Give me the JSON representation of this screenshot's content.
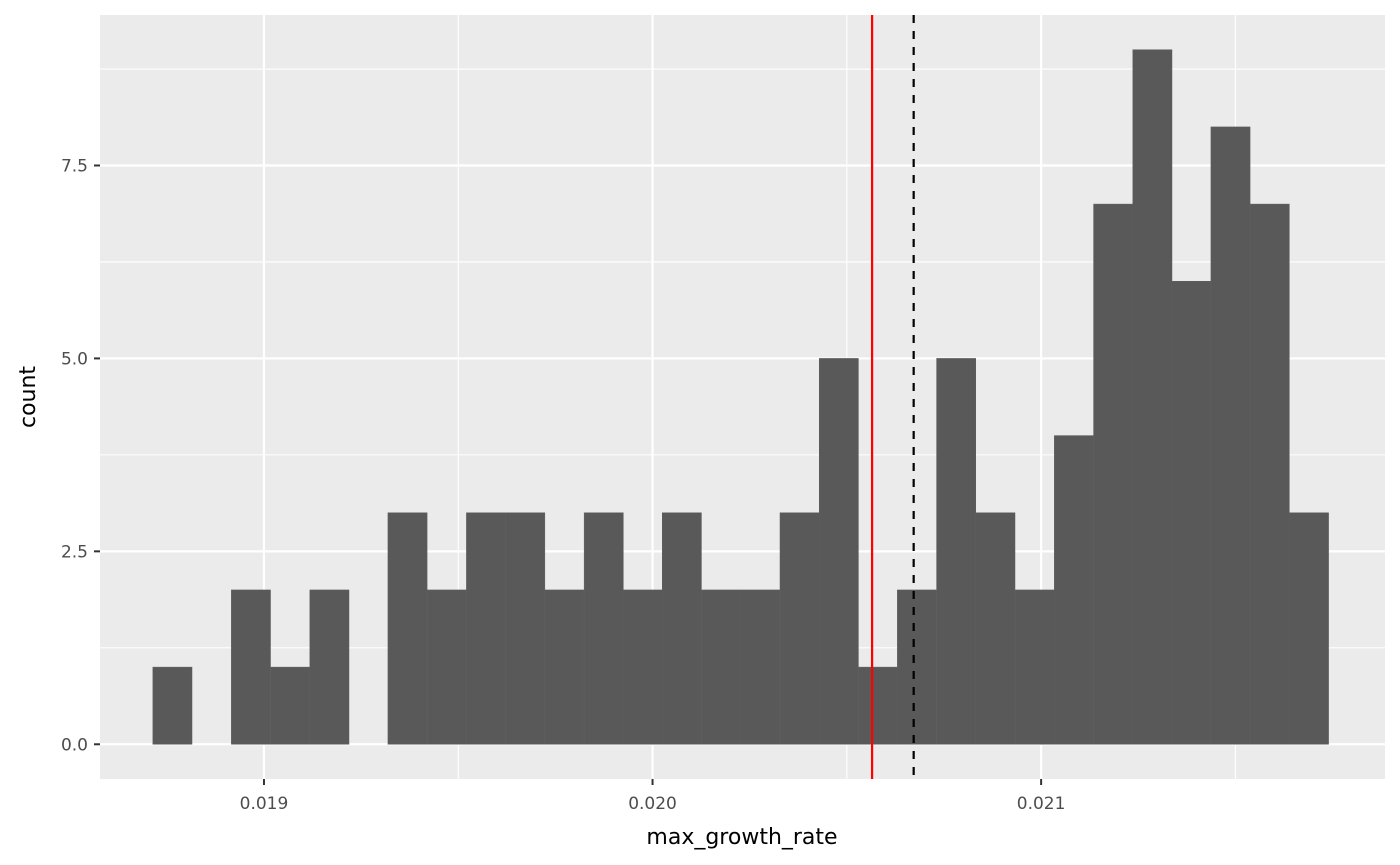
{
  "chart_data": {
    "type": "bar",
    "subtype": "histogram",
    "title": "",
    "xlabel": "max_growth_rate",
    "ylabel": "count",
    "xlim": [
      0.018578,
      0.021885
    ],
    "ylim": [
      -0.45,
      9.45
    ],
    "x_ticks": [
      {
        "value": 0.019,
        "label": "0.019"
      },
      {
        "value": 0.02,
        "label": "0.020"
      },
      {
        "value": 0.021,
        "label": "0.021"
      }
    ],
    "y_ticks": [
      {
        "value": 0,
        "label": "0.0"
      },
      {
        "value": 2.5,
        "label": "2.5"
      },
      {
        "value": 5,
        "label": "5.0"
      },
      {
        "value": 7.5,
        "label": "7.5"
      }
    ],
    "bin_width": 0.0001008,
    "bins": [
      {
        "start": 0.018714,
        "count": 1
      },
      {
        "start": 0.018815,
        "count": 0
      },
      {
        "start": 0.018916,
        "count": 2
      },
      {
        "start": 0.019017,
        "count": 1
      },
      {
        "start": 0.019118,
        "count": 2
      },
      {
        "start": 0.019218,
        "count": 0
      },
      {
        "start": 0.019319,
        "count": 3
      },
      {
        "start": 0.01942,
        "count": 2
      },
      {
        "start": 0.019521,
        "count": 3
      },
      {
        "start": 0.019622,
        "count": 3
      },
      {
        "start": 0.019723,
        "count": 2
      },
      {
        "start": 0.019824,
        "count": 3
      },
      {
        "start": 0.019924,
        "count": 2
      },
      {
        "start": 0.020025,
        "count": 3
      },
      {
        "start": 0.020126,
        "count": 2
      },
      {
        "start": 0.020227,
        "count": 2
      },
      {
        "start": 0.020328,
        "count": 3
      },
      {
        "start": 0.020429,
        "count": 5
      },
      {
        "start": 0.02053,
        "count": 1
      },
      {
        "start": 0.02063,
        "count": 2
      },
      {
        "start": 0.020731,
        "count": 5
      },
      {
        "start": 0.020832,
        "count": 3
      },
      {
        "start": 0.020933,
        "count": 2
      },
      {
        "start": 0.021034,
        "count": 4
      },
      {
        "start": 0.021135,
        "count": 7
      },
      {
        "start": 0.021236,
        "count": 9
      },
      {
        "start": 0.021336,
        "count": 6
      },
      {
        "start": 0.021437,
        "count": 8
      },
      {
        "start": 0.021538,
        "count": 7
      },
      {
        "start": 0.021639,
        "count": 3
      }
    ],
    "vlines": [
      {
        "value": 0.020565,
        "color": "#ff0000",
        "style": "solid"
      },
      {
        "value": 0.020672,
        "color": "#000000",
        "style": "dashed"
      }
    ],
    "colors": {
      "panel_background": "#ebebeb",
      "grid_major": "#ffffff",
      "bar_fill": "#595959",
      "tick_text": "#4d4d4d",
      "tick_mark": "#333333"
    },
    "grid": true,
    "legend": "none"
  }
}
